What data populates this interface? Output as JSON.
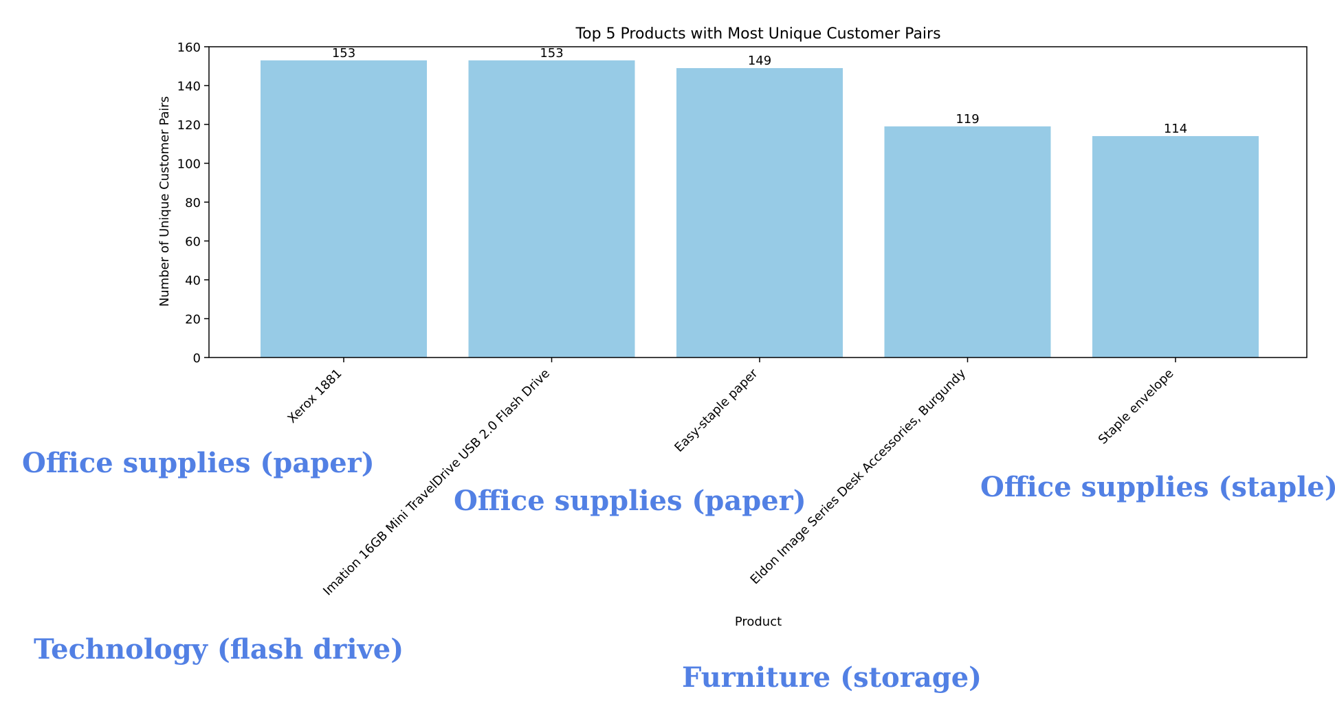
{
  "chart_data": {
    "type": "bar",
    "title": "Top 5 Products with Most Unique Customer Pairs",
    "xlabel": "Product",
    "ylabel": "Number of Unique Customer Pairs",
    "categories": [
      "Xerox 1881",
      "Imation 16GB Mini TravelDrive USB 2.0 Flash Drive",
      "Easy-staple paper",
      "Eldon Image Series Desk Accessories, Burgundy",
      "Staple envelope"
    ],
    "values": [
      153,
      153,
      149,
      119,
      114
    ],
    "data_labels": [
      "153",
      "153",
      "149",
      "119",
      "114"
    ],
    "ylim": [
      0,
      160
    ],
    "yticks": [
      0,
      20,
      40,
      60,
      80,
      100,
      120,
      140,
      160
    ],
    "bar_color": "#97cbe6",
    "grid": false,
    "legend": "none"
  },
  "annotations": {
    "color": "#5280e4",
    "items": [
      "Office supplies (paper)",
      "Office supplies (paper)",
      "Office supplies (staple)",
      "Technology (flash drive)",
      "Furniture (storage)"
    ]
  }
}
